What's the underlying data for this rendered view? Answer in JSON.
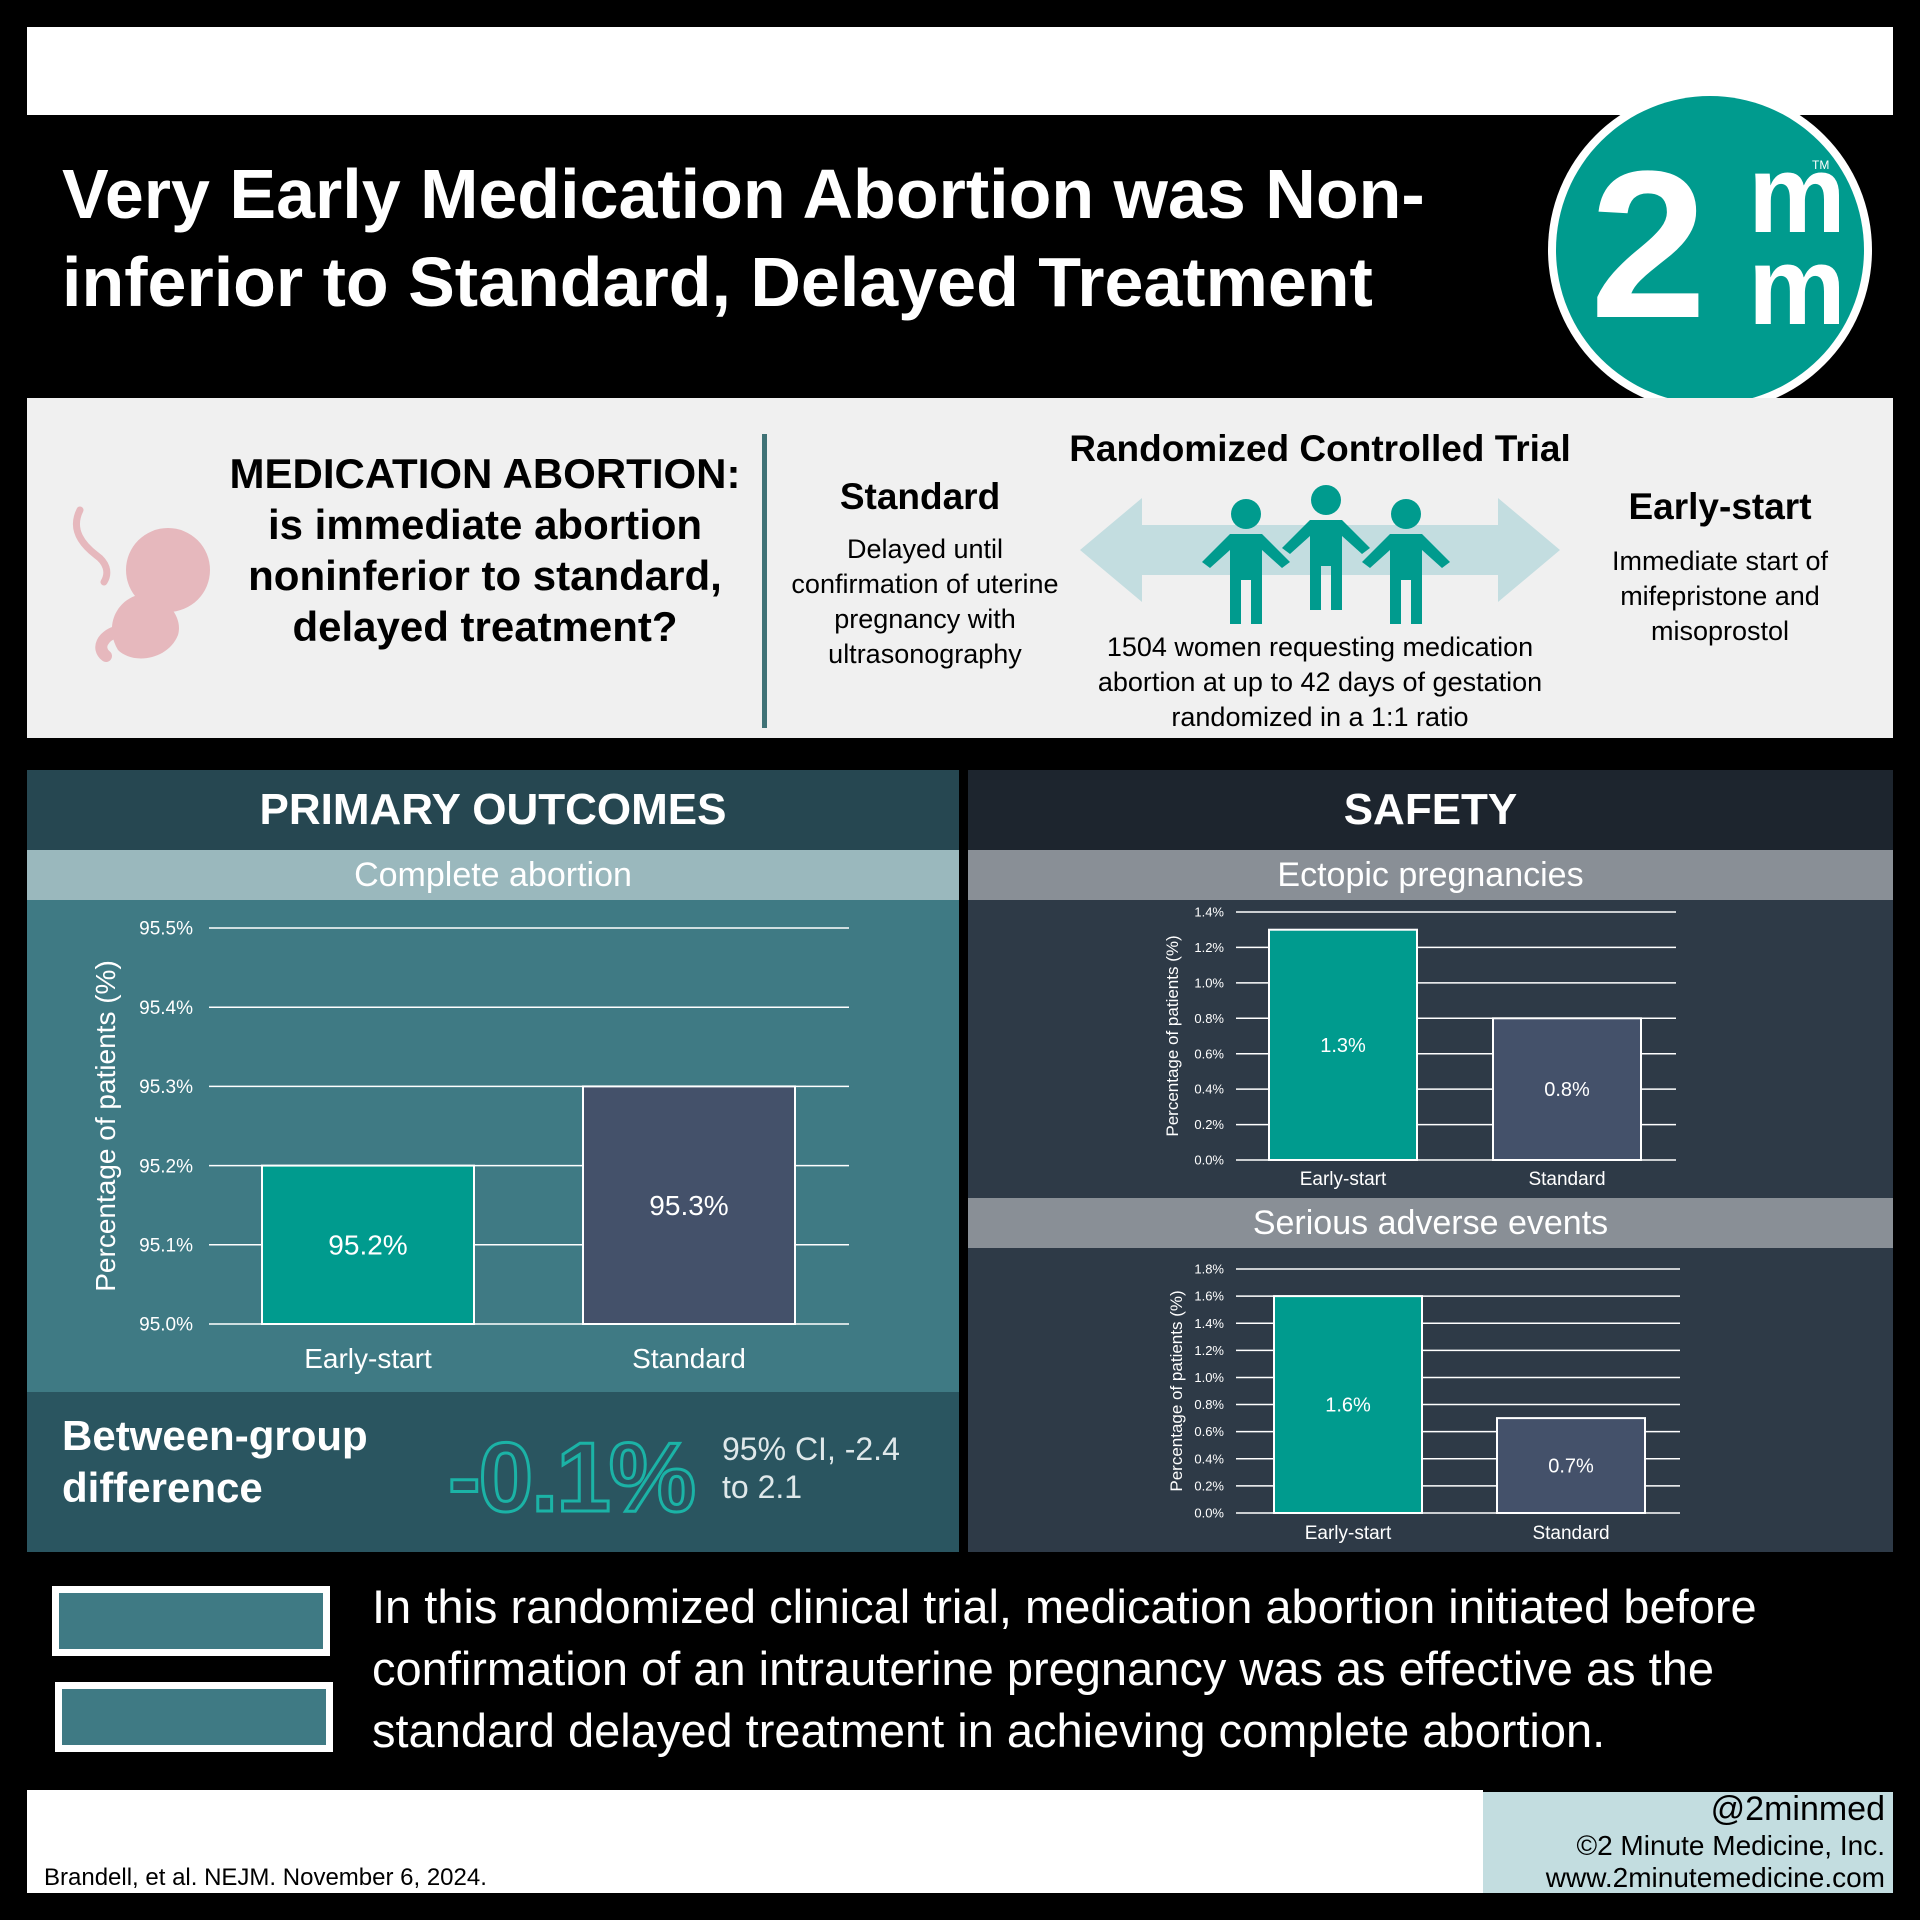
{
  "header": {
    "title": "Very Early Medication Abortion was Non-inferior to Standard, Delayed Treatment",
    "logo_main": "2",
    "logo_sup": "m",
    "logo_sub": "m",
    "logo_tm": "TM"
  },
  "intro": {
    "question": "MEDICATION ABORTION: is immediate abortion noninferior to standard, delayed treatment?",
    "rct_title": "Randomized Controlled Trial",
    "standard_title": "Standard",
    "standard_text": "Delayed until confirmation of uterine pregnancy with ultrasonography",
    "early_title": "Early-start",
    "early_text": "Immediate start of mifepristone and misoprostol",
    "population": "1504 women requesting medication abortion at up to 42 days of gestation randomized in a 1:1 ratio"
  },
  "primary": {
    "title": "PRIMARY OUTCOMES",
    "subtitle": "Complete abortion",
    "between_label": "Between-group difference",
    "between_value": "-0.1%",
    "between_ci": "95% CI, -2.4 to 2.1"
  },
  "safety": {
    "title": "SAFETY",
    "sub1": "Ectopic pregnancies",
    "sub2": "Serious adverse events"
  },
  "conclusion": "In this randomized clinical trial, medication abortion initiated before confirmation of an intrauterine pregnancy was as effective as the standard delayed treatment in achieving complete abortion.",
  "footer": {
    "handle": "@2minmed",
    "copyright": "©2 Minute Medicine, Inc.",
    "url": "www.2minutemedicine.com",
    "citation": "Brandell, et al. NEJM. November 6, 2024."
  },
  "colors": {
    "teal": "#009b8e",
    "slate": "#44516a",
    "bar_stroke": "#ffffff"
  },
  "chart_data": [
    {
      "type": "bar",
      "title": "Complete abortion",
      "ylabel": "Percentage of patients (%)",
      "categories": [
        "Early-start",
        "Standard"
      ],
      "values": [
        95.2,
        95.3
      ],
      "value_labels": [
        "95.2%",
        "95.3%"
      ],
      "ylim": [
        95.0,
        95.5
      ],
      "yticks": [
        95.0,
        95.1,
        95.2,
        95.3,
        95.4,
        95.5
      ],
      "ytick_labels": [
        "95.0%",
        "95.1%",
        "95.2%",
        "95.3%",
        "95.4%",
        "95.5%"
      ],
      "grid": true
    },
    {
      "type": "bar",
      "title": "Ectopic pregnancies",
      "ylabel": "Percentage of patients (%)",
      "categories": [
        "Early-start",
        "Standard"
      ],
      "values": [
        1.3,
        0.8
      ],
      "value_labels": [
        "1.3%",
        "0.8%"
      ],
      "ylim": [
        0.0,
        1.4
      ],
      "yticks": [
        0.0,
        0.2,
        0.4,
        0.6,
        0.8,
        1.0,
        1.2,
        1.4
      ],
      "ytick_labels": [
        "0.0%",
        "0.2%",
        "0.4%",
        "0.6%",
        "0.8%",
        "1.0%",
        "1.2%",
        "1.4%"
      ],
      "grid": true
    },
    {
      "type": "bar",
      "title": "Serious adverse events",
      "ylabel": "Percentage of patients (%)",
      "categories": [
        "Early-start",
        "Standard"
      ],
      "values": [
        1.6,
        0.7
      ],
      "value_labels": [
        "1.6%",
        "0.7%"
      ],
      "ylim": [
        0.0,
        1.8
      ],
      "yticks": [
        0.0,
        0.2,
        0.4,
        0.6,
        0.8,
        1.0,
        1.2,
        1.4,
        1.6,
        1.8
      ],
      "ytick_labels": [
        "0.0%",
        "0.2%",
        "0.4%",
        "0.6%",
        "0.8%",
        "1.0%",
        "1.2%",
        "1.4%",
        "1.6%",
        "1.8%"
      ],
      "grid": true
    }
  ]
}
